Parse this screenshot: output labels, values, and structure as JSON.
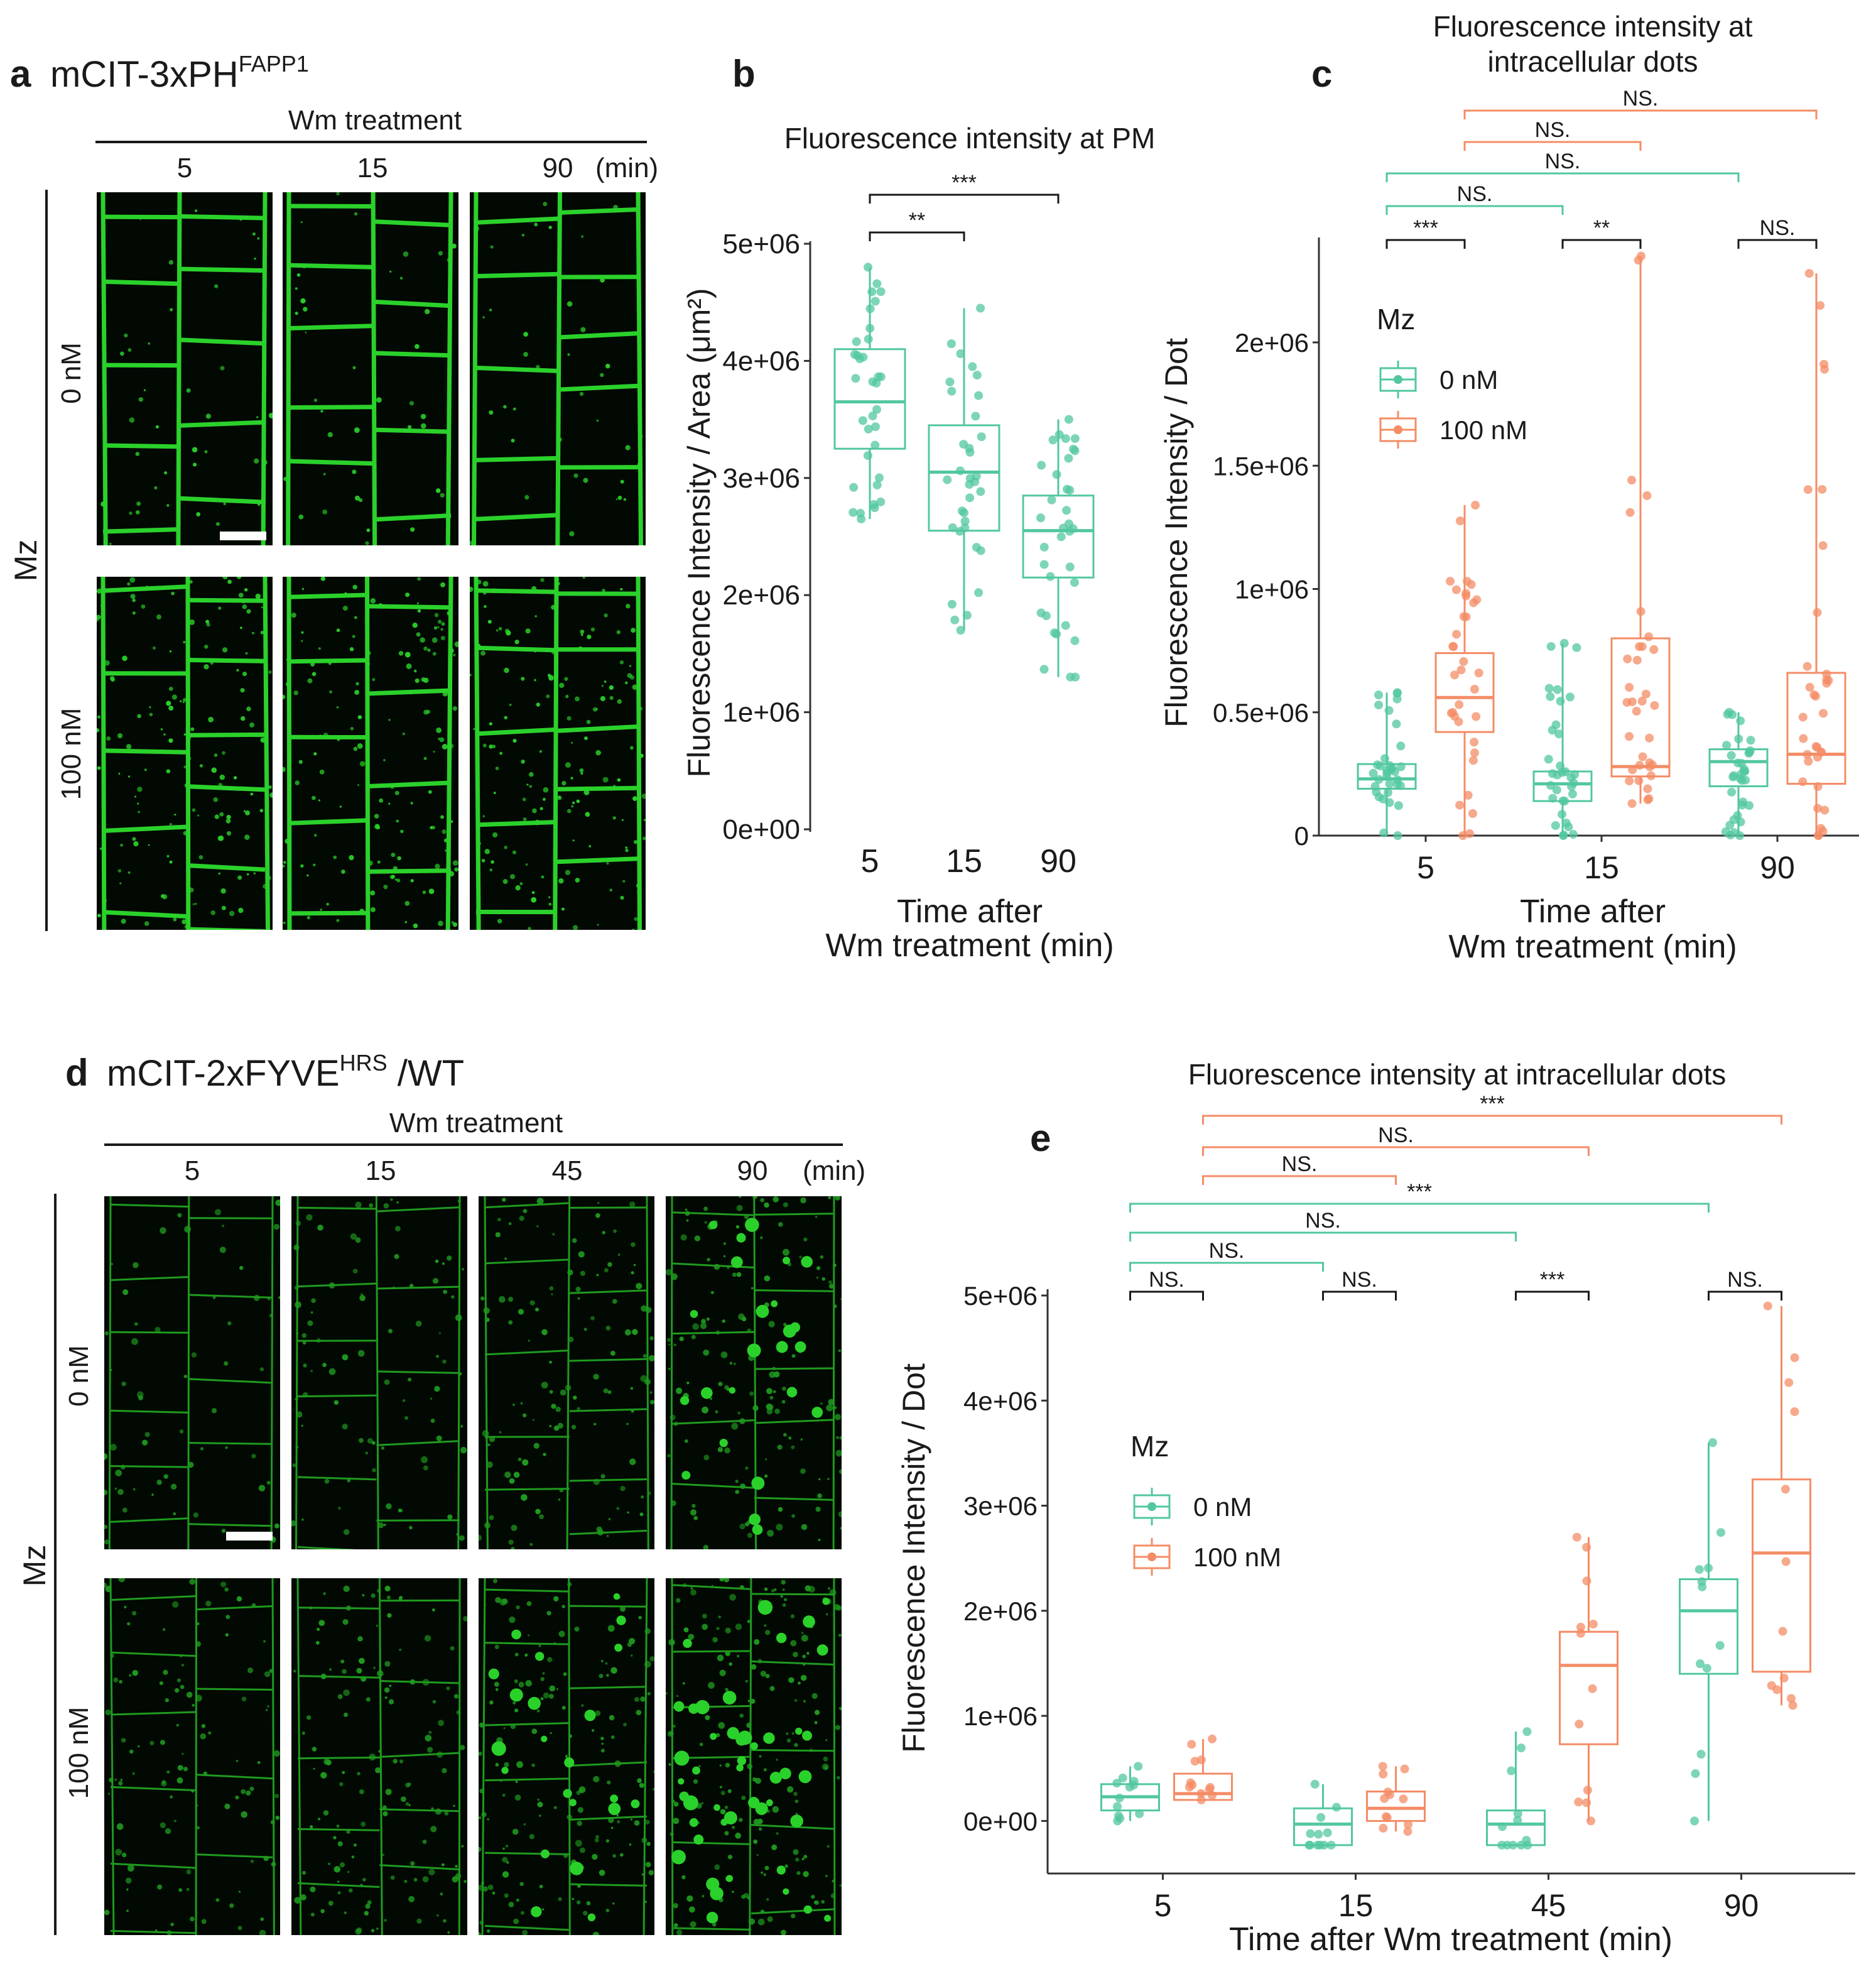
{
  "panel_a": {
    "letter": "a",
    "title": "mCIT-3xPH",
    "title_sup": "FAPP1",
    "treatment_label": "Wm treatment",
    "times": [
      "5",
      "15",
      "90"
    ],
    "time_unit": "(min)",
    "drug_label": "Mz",
    "row_labels": [
      "0 nM",
      "100 nM"
    ]
  },
  "panel_d": {
    "letter": "d",
    "title": "mCIT-2xFYVE",
    "title_sup": "HRS",
    "title_suffix": " /WT",
    "treatment_label": "Wm treatment",
    "times": [
      "5",
      "15",
      "45",
      "90"
    ],
    "time_unit": "(min)",
    "drug_label": "Mz",
    "row_labels": [
      "0 nM",
      "100 nM"
    ]
  },
  "colors": {
    "green": "#52c7a0",
    "orange": "#f48c66",
    "black": "#1a1a1a",
    "micrograph_bright": "#2bd12b",
    "micrograph_dim": "#1f9a1f"
  },
  "chart_data": [
    {
      "id": "b",
      "letter": "b",
      "type": "box",
      "title": "Fluorescence intensity at PM",
      "xlabel": [
        "Time after",
        "Wm treatment (min)"
      ],
      "ylabel": "Fluorescence Intensity / Area (μm²)",
      "categories": [
        "5",
        "15",
        "90"
      ],
      "ylim": [
        0,
        5000000
      ],
      "yticks": [
        0,
        1000000,
        2000000,
        3000000,
        4000000,
        5000000
      ],
      "ytick_labels": [
        "0e+00",
        "1e+06",
        "2e+06",
        "3e+06",
        "4e+06",
        "5e+06"
      ],
      "series": [
        {
          "name": "Mz 0 nM",
          "color": "green",
          "groups": [
            {
              "category": "5",
              "q1": 3250000,
              "median": 3650000,
              "q3": 4100000,
              "min": 2650000,
              "max": 4800000
            },
            {
              "category": "15",
              "q1": 2550000,
              "median": 3050000,
              "q3": 3450000,
              "min": 1700000,
              "max": 4450000
            },
            {
              "category": "90",
              "q1": 2150000,
              "median": 2550000,
              "q3": 2850000,
              "min": 1300000,
              "max": 3500000
            }
          ]
        }
      ],
      "significance": [
        {
          "from": "5",
          "to": "15",
          "label": "**",
          "color": "black"
        },
        {
          "from": "5",
          "to": "90",
          "label": "***",
          "color": "black"
        }
      ]
    },
    {
      "id": "c",
      "letter": "c",
      "type": "box",
      "title": [
        "Fluorescence intensity at",
        "intracellular dots"
      ],
      "xlabel": [
        "Time after",
        "Wm treatment (min)"
      ],
      "ylabel": "Fluorescence Intensity / Dot",
      "categories": [
        "5",
        "15",
        "90"
      ],
      "ylim": [
        0,
        2400000
      ],
      "yticks": [
        0,
        500000,
        1000000,
        1500000,
        2000000
      ],
      "ytick_labels": [
        "0",
        "0.5e+06",
        "1e+06",
        "1.5e+06",
        "2e+06"
      ],
      "legend": {
        "title": "Mz",
        "entries": [
          "0 nM",
          "100 nM"
        ],
        "placement": "top-left"
      },
      "series": [
        {
          "name": "0 nM",
          "color": "green",
          "groups": [
            {
              "category": "5",
              "q1": 190000,
              "median": 230000,
              "q3": 290000,
              "min": 0,
              "max": 580000
            },
            {
              "category": "15",
              "q1": 140000,
              "median": 210000,
              "q3": 260000,
              "min": 0,
              "max": 780000
            },
            {
              "category": "90",
              "q1": 200000,
              "median": 300000,
              "q3": 350000,
              "min": 0,
              "max": 500000
            }
          ]
        },
        {
          "name": "100 nM",
          "color": "orange",
          "groups": [
            {
              "category": "5",
              "q1": 420000,
              "median": 560000,
              "q3": 740000,
              "min": 0,
              "max": 1340000
            },
            {
              "category": "15",
              "q1": 240000,
              "median": 280000,
              "q3": 800000,
              "min": 130000,
              "max": 2350000
            },
            {
              "category": "90",
              "q1": 210000,
              "median": 330000,
              "q3": 660000,
              "min": 0,
              "max": 2280000
            }
          ]
        }
      ],
      "significance": [
        {
          "from": "5:0 nM",
          "to": "5:100 nM",
          "label": "***",
          "color": "black"
        },
        {
          "from": "15:0 nM",
          "to": "15:100 nM",
          "label": "**",
          "color": "black"
        },
        {
          "from": "90:0 nM",
          "to": "90:100 nM",
          "label": "NS.",
          "color": "black"
        },
        {
          "from": "5:0 nM",
          "to": "15:0 nM",
          "label": "NS.",
          "color": "green"
        },
        {
          "from": "5:0 nM",
          "to": "90:0 nM",
          "label": "NS.",
          "color": "green"
        },
        {
          "from": "5:100 nM",
          "to": "15:100 nM",
          "label": "NS.",
          "color": "orange"
        },
        {
          "from": "5:100 nM",
          "to": "90:100 nM",
          "label": "NS.",
          "color": "orange"
        }
      ]
    },
    {
      "id": "e",
      "letter": "e",
      "type": "box",
      "title": "Fluorescence intensity at intracellular dots",
      "xlabel": [
        "Time after Wm treatment (min)"
      ],
      "ylabel": "Fluorescence Intensity / Dot",
      "categories": [
        "5",
        "15",
        "45",
        "90"
      ],
      "ylim": [
        -500000,
        5000000
      ],
      "yticks": [
        0,
        1000000,
        2000000,
        3000000,
        4000000,
        5000000
      ],
      "ytick_labels": [
        "0e+00",
        "1e+06",
        "2e+06",
        "3e+06",
        "4e+06",
        "5e+06"
      ],
      "legend": {
        "title": "Mz",
        "entries": [
          "0 nM",
          "100 nM"
        ],
        "placement": "middle-left"
      },
      "series": [
        {
          "name": "0 nM",
          "color": "green",
          "groups": [
            {
              "category": "5",
              "q1": 100000,
              "median": 230000,
              "q3": 350000,
              "min": 0,
              "max": 520000
            },
            {
              "category": "15",
              "q1": -230000,
              "median": -30000,
              "q3": 120000,
              "min": -230000,
              "max": 350000
            },
            {
              "category": "45",
              "q1": -230000,
              "median": -30000,
              "q3": 100000,
              "min": -230000,
              "max": 850000
            },
            {
              "category": "90",
              "q1": 1400000,
              "median": 2000000,
              "q3": 2300000,
              "min": 0,
              "max": 3600000
            }
          ]
        },
        {
          "name": "100 nM",
          "color": "orange",
          "groups": [
            {
              "category": "5",
              "q1": 200000,
              "median": 260000,
              "q3": 450000,
              "min": 200000,
              "max": 780000
            },
            {
              "category": "15",
              "q1": 0,
              "median": 120000,
              "q3": 280000,
              "min": -100000,
              "max": 520000
            },
            {
              "category": "45",
              "q1": 730000,
              "median": 1480000,
              "q3": 1800000,
              "min": 0,
              "max": 2700000
            },
            {
              "category": "90",
              "q1": 1420000,
              "median": 2550000,
              "q3": 3250000,
              "min": 1100000,
              "max": 4900000
            }
          ]
        }
      ],
      "significance": [
        {
          "from": "5:0 nM",
          "to": "5:100 nM",
          "label": "NS.",
          "color": "black"
        },
        {
          "from": "15:0 nM",
          "to": "15:100 nM",
          "label": "NS.",
          "color": "black"
        },
        {
          "from": "45:0 nM",
          "to": "45:100 nM",
          "label": "***",
          "color": "black"
        },
        {
          "from": "90:0 nM",
          "to": "90:100 nM",
          "label": "NS.",
          "color": "black"
        },
        {
          "from": "5:0 nM",
          "to": "15:0 nM",
          "label": "NS.",
          "color": "green"
        },
        {
          "from": "5:0 nM",
          "to": "45:0 nM",
          "label": "NS.",
          "color": "green"
        },
        {
          "from": "5:0 nM",
          "to": "90:0 nM",
          "label": "***",
          "color": "green"
        },
        {
          "from": "5:100 nM",
          "to": "15:100 nM",
          "label": "NS.",
          "color": "orange"
        },
        {
          "from": "5:100 nM",
          "to": "45:100 nM",
          "label": "NS.",
          "color": "orange"
        },
        {
          "from": "5:100 nM",
          "to": "90:100 nM",
          "label": "***",
          "color": "orange"
        }
      ]
    }
  ]
}
